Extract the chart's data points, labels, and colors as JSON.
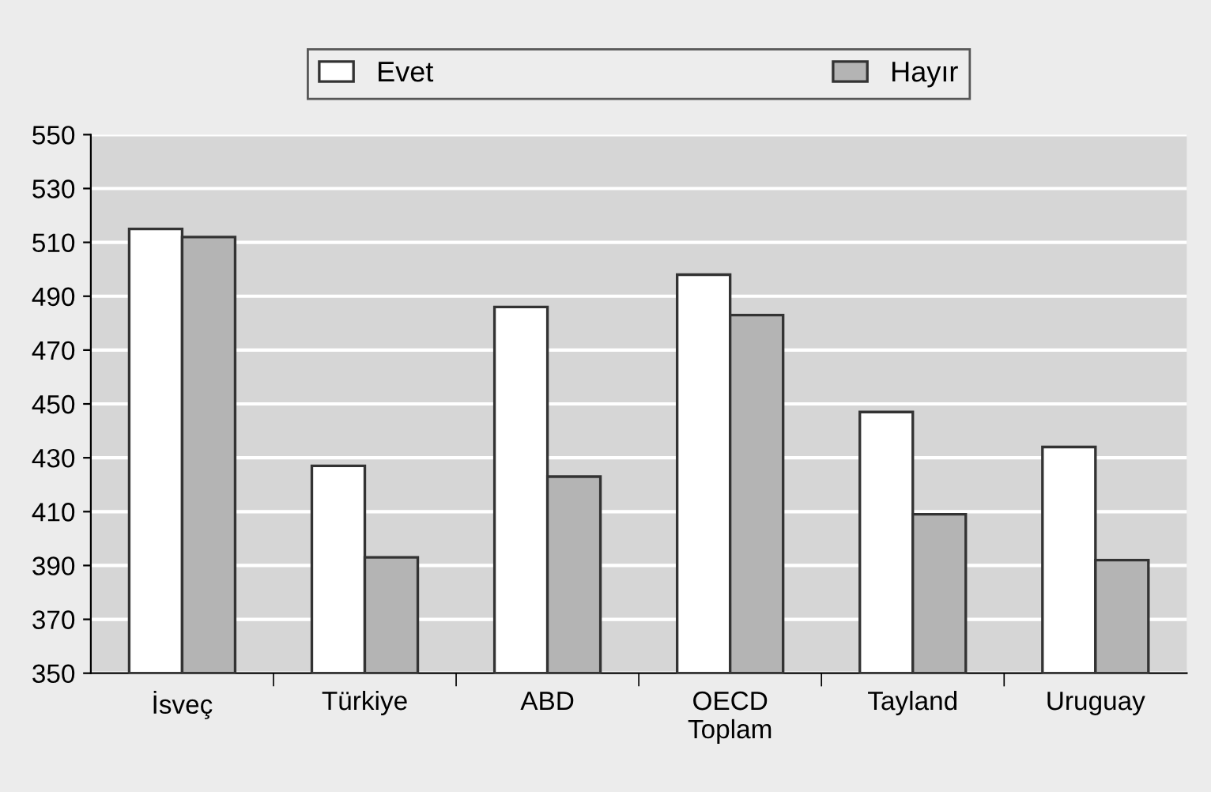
{
  "chart_data": {
    "type": "bar",
    "categories": [
      "İsveç",
      "Türkiye",
      "ABD",
      "OECD\nToplam",
      "Tayland",
      "Uruguay"
    ],
    "series": [
      {
        "name": "Evet",
        "color": "#ffffff",
        "values": [
          515,
          427,
          486,
          498,
          447,
          434
        ]
      },
      {
        "name": "Hayır",
        "color": "#b4b4b4",
        "values": [
          512,
          393,
          423,
          483,
          409,
          392
        ]
      }
    ],
    "ylim": [
      350,
      550
    ],
    "yticks": [
      350,
      370,
      390,
      410,
      430,
      450,
      470,
      490,
      510,
      530,
      550
    ],
    "grid": "y",
    "legend": "top"
  }
}
